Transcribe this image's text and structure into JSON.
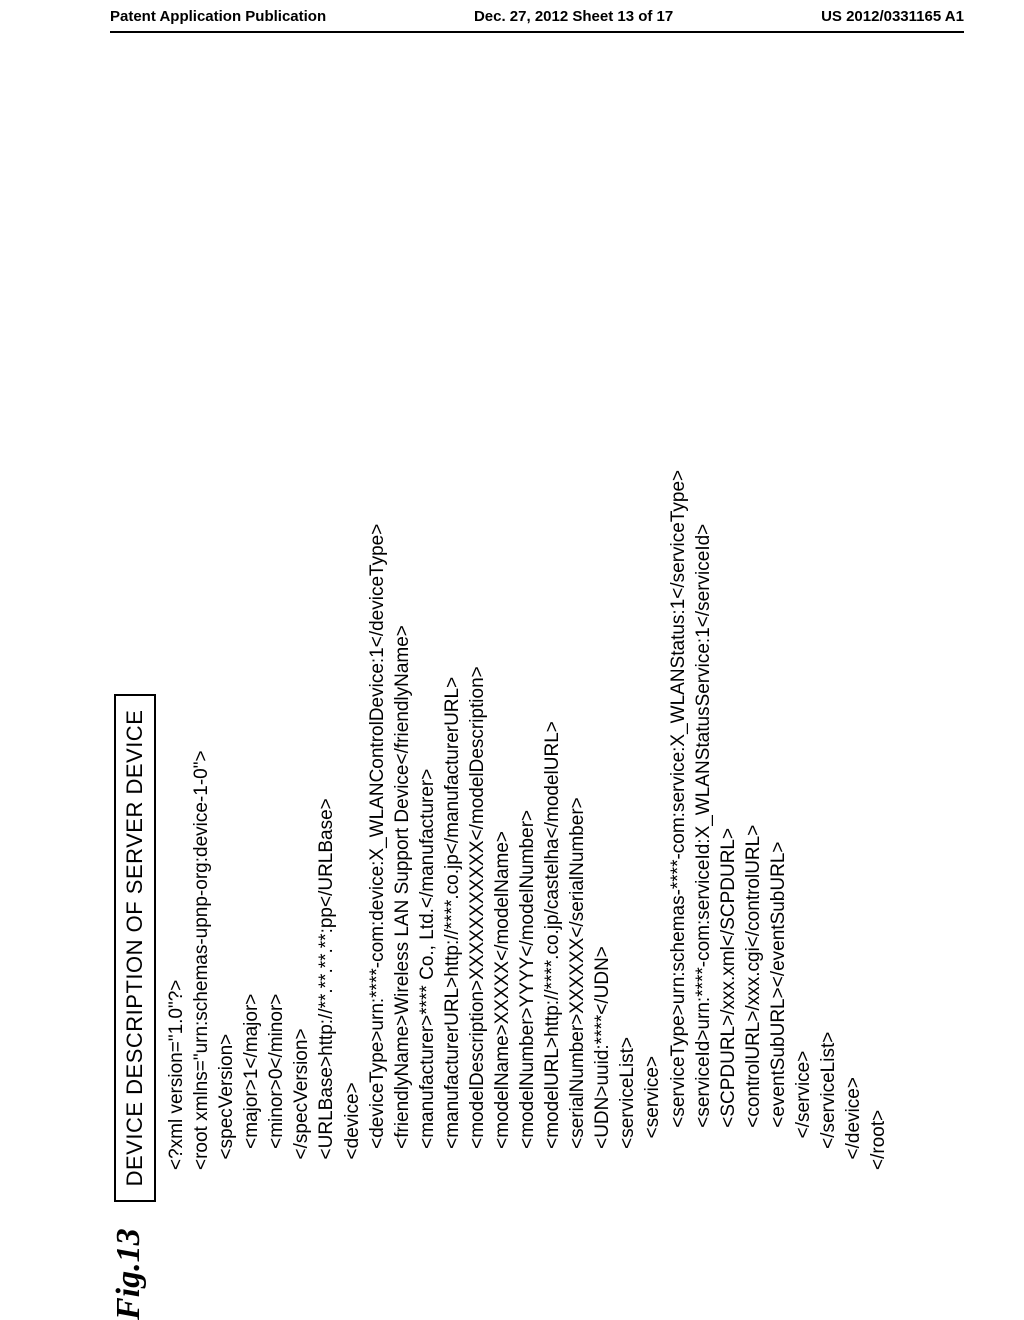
{
  "header": {
    "left": "Patent Application Publication",
    "center": "Dec. 27, 2012  Sheet 13 of 17",
    "right": "US 2012/0331165 A1"
  },
  "figure": {
    "label": "Fig.13",
    "title": "DEVICE DESCRIPTION OF SERVER DEVICE"
  },
  "xml": {
    "l01": "<?xml version=\"1.0\"?>",
    "l02": "<root xmlns=\"urn:schemas-upnp-org:device-1-0\">",
    "l03": "  <specVersion>",
    "l04": "    <major>1</major>",
    "l05": "    <minor>0</minor>",
    "l06": "  </specVersion>",
    "l07": "  <URLBase>http://**.**.**.**:pp</URLBase>",
    "l08": "  <device>",
    "l09": "    <deviceType>urn:****-com:device:X_WLANControlDevice:1</deviceType>",
    "l10": "    <friendlyName>Wireless LAN Support Device</friendlyName>",
    "l11": "    <manufacturer>**** Co., Ltd.</manufacturer>",
    "l12": "    <manufacturerURL>http://****.co.jp</manufacturerURL>",
    "l13": "    <modelDescription>XXXXXXXXXXX</modelDescription>",
    "l14": "    <modelName>XXXXX</modelName>",
    "l15": "    <modelNumber>YYYY</modelNumber>",
    "l16": "    <modelURL>http://****.co.jp/castelha</modelURL>",
    "l17": "    <serialNumber>XXXXXX</serialNumber>",
    "l18": "    <UDN>uuid:****</UDN>",
    "l19": "    <serviceList>",
    "l20": "      <service>",
    "l21": "        <serviceType>urn:schemas-****-com:service:X_WLANStatus:1</serviceType>",
    "l22": "        <serviceId>urn:****-com:serviceId:X_WLANStatusService:1</serviceId>",
    "l23": "        <SCPDURL>/xxx.xml</SCPDURL>",
    "l24": "        <controlURL>/xxx.cgi</controlURL>",
    "l25": "        <eventSubURL></eventSubURL>",
    "l26": "      </service>",
    "l27": "    </serviceList>",
    "l28": "  </device>",
    "l29": "</root>"
  }
}
